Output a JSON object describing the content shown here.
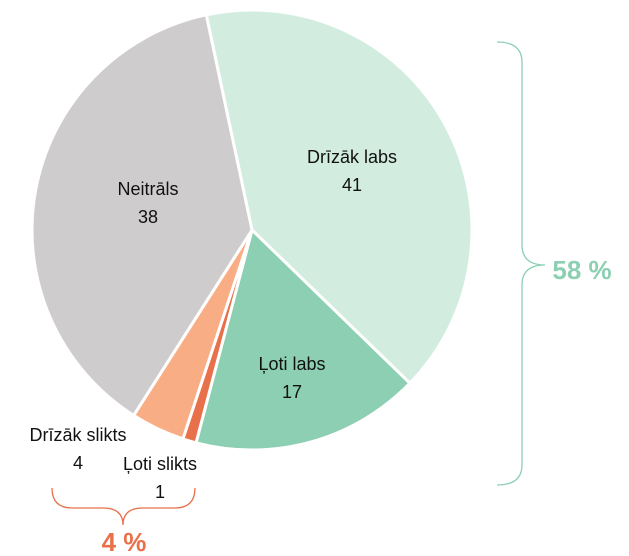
{
  "chart_data": {
    "type": "pie",
    "categories": [
      "Drīzāk labs",
      "Ļoti labs",
      "Ļoti slikts",
      "Drīzāk slikts",
      "Neitrāls"
    ],
    "values": [
      41,
      17,
      1,
      4,
      38
    ],
    "colors": [
      "#d2ece0",
      "#8dcfb3",
      "#e8704a",
      "#f9ad84",
      "#cfcccd"
    ],
    "annotations": [
      {
        "text": "58 %",
        "color": "#8dcfb3"
      },
      {
        "text": "4 %",
        "color": "#e8704a"
      }
    ]
  }
}
